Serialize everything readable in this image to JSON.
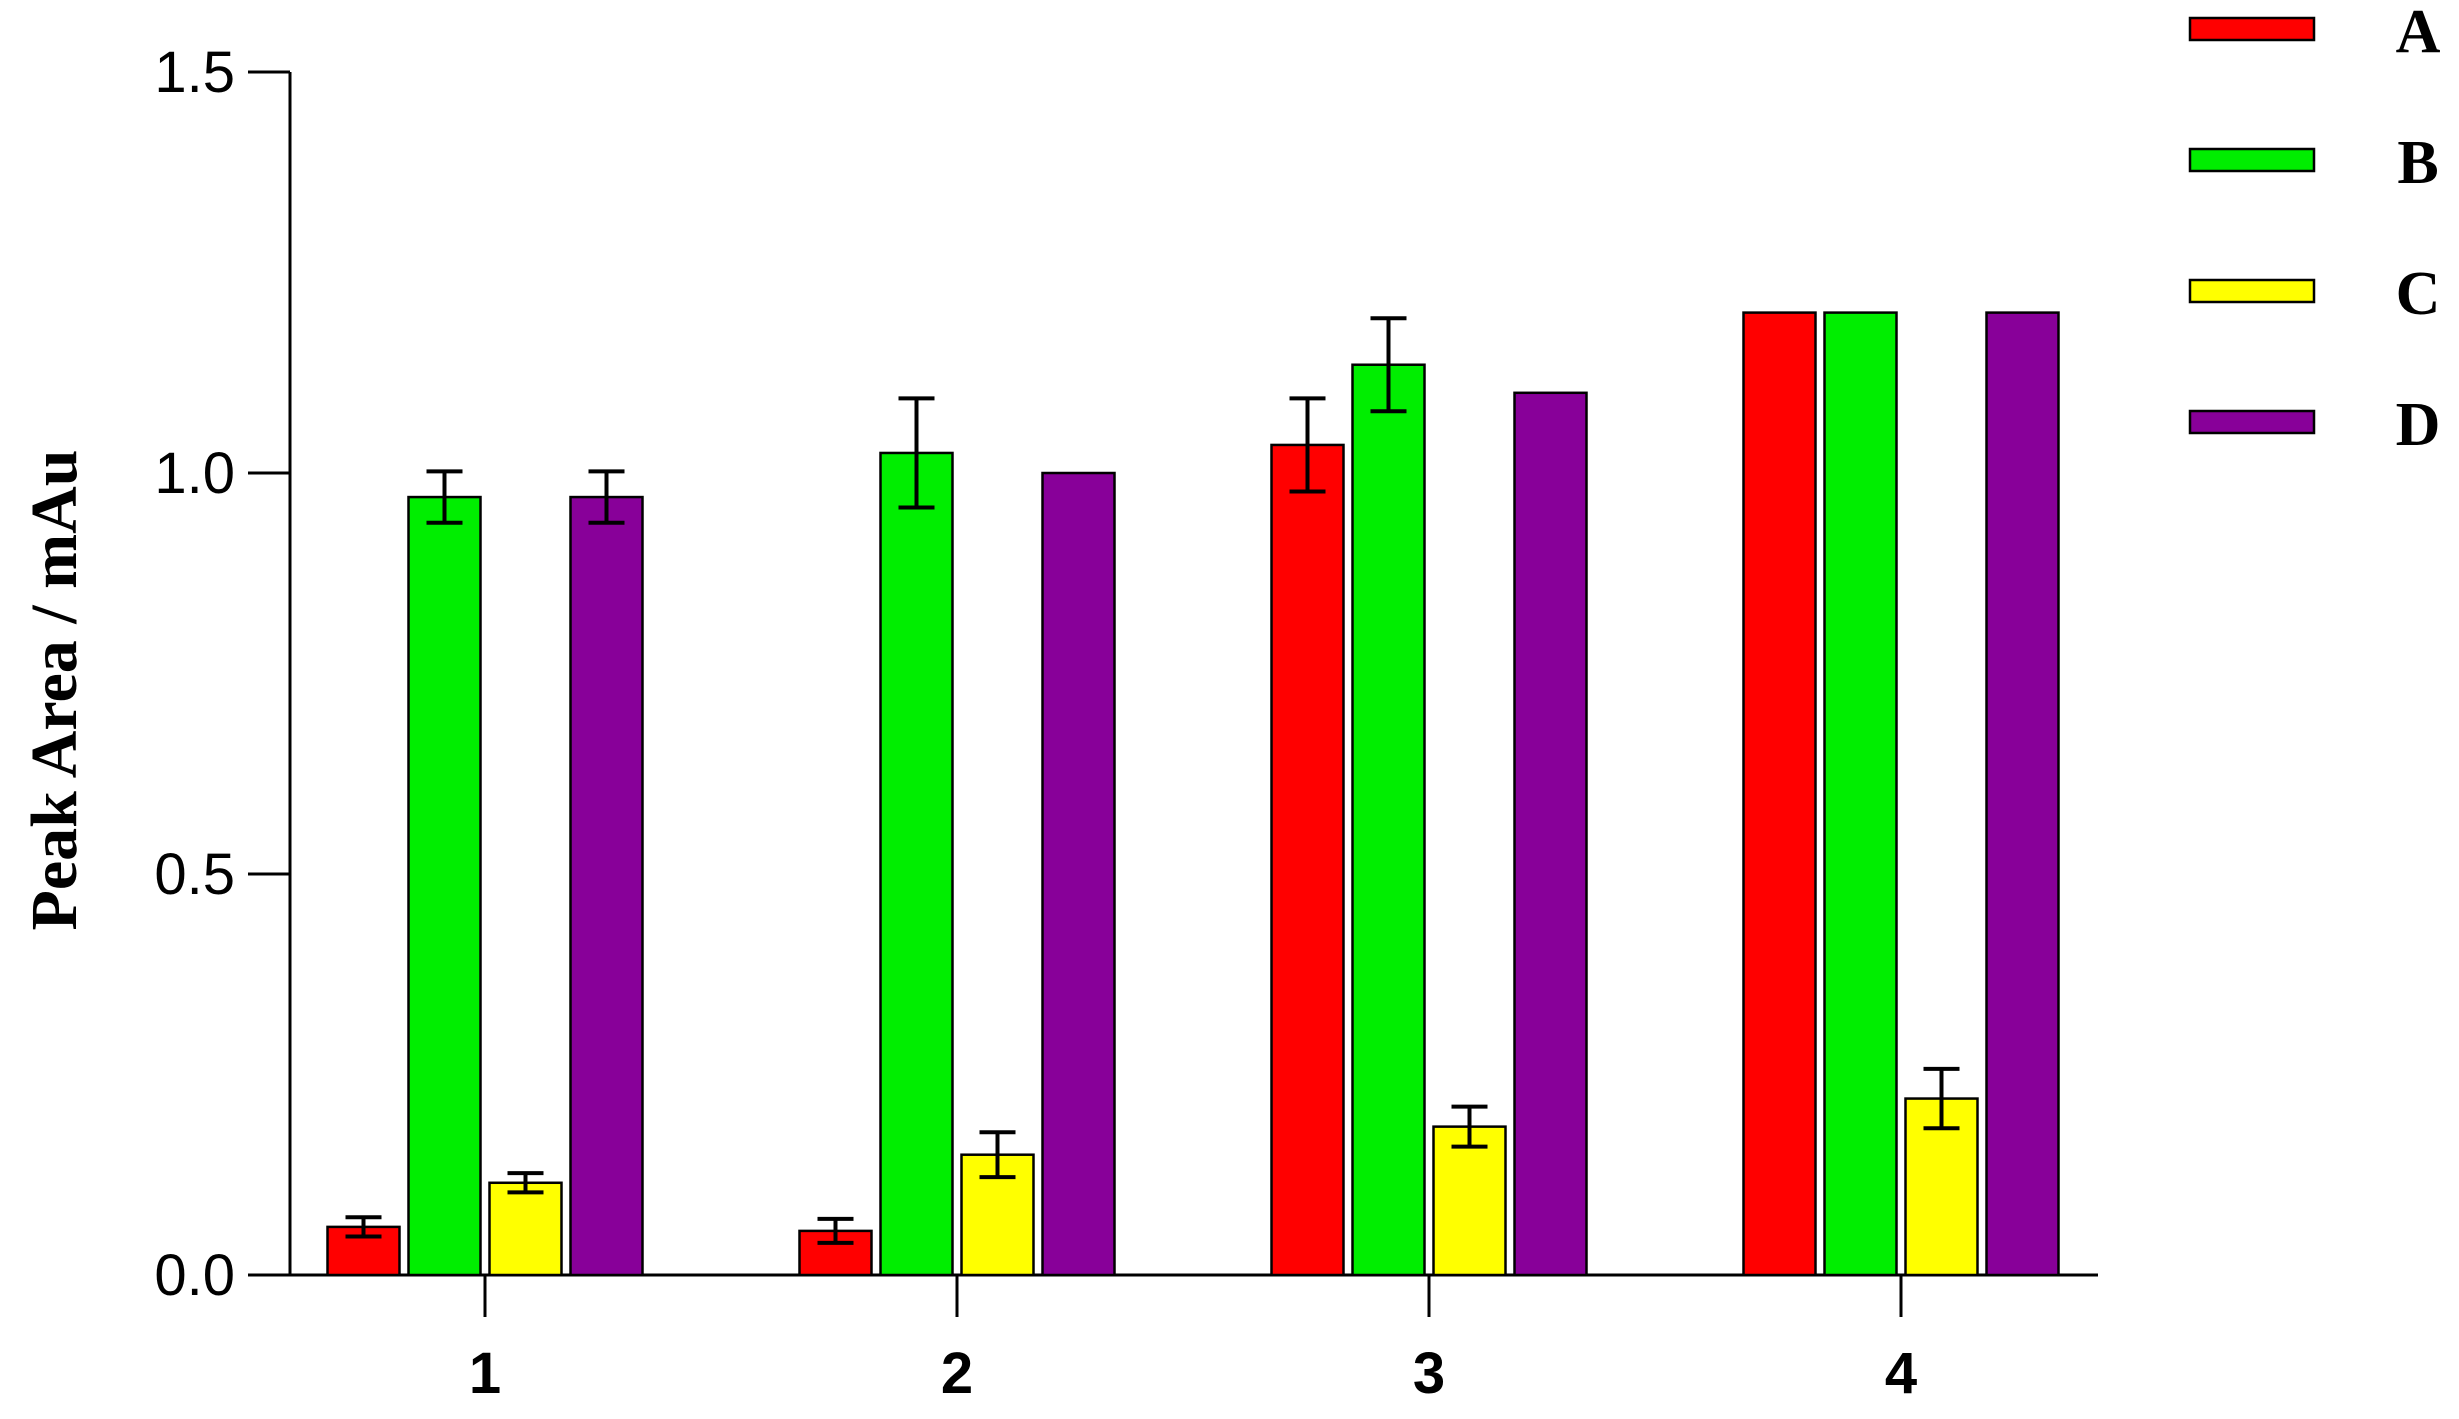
{
  "chart_data": {
    "type": "bar",
    "title": "",
    "xlabel": "",
    "ylabel": "Peak Area / mAu",
    "ylim": [
      0,
      1.5
    ],
    "yticks": [
      "0.0",
      "0.5",
      "1.0",
      "1.5"
    ],
    "categories": [
      "1",
      "2",
      "3",
      "4"
    ],
    "legend_position": "top-right",
    "series": [
      {
        "name": "A",
        "color": "#ff0000",
        "values": [
          0.06,
          0.055,
          1.035,
          1.2
        ],
        "errors": [
          0.012,
          0.015,
          0.058,
          null
        ]
      },
      {
        "name": "B",
        "color": "#00ee00",
        "values": [
          0.97,
          1.025,
          1.135,
          1.2
        ],
        "errors": [
          0.032,
          0.068,
          0.058,
          null
        ]
      },
      {
        "name": "C",
        "color": "#ffff00",
        "values": [
          0.115,
          0.15,
          0.185,
          0.22
        ],
        "errors": [
          0.012,
          0.028,
          0.025,
          0.037
        ]
      },
      {
        "name": "D",
        "color": "#880099",
        "values": [
          0.97,
          1.0,
          1.1,
          1.2
        ],
        "errors": [
          0.032,
          null,
          null,
          null
        ]
      }
    ]
  }
}
